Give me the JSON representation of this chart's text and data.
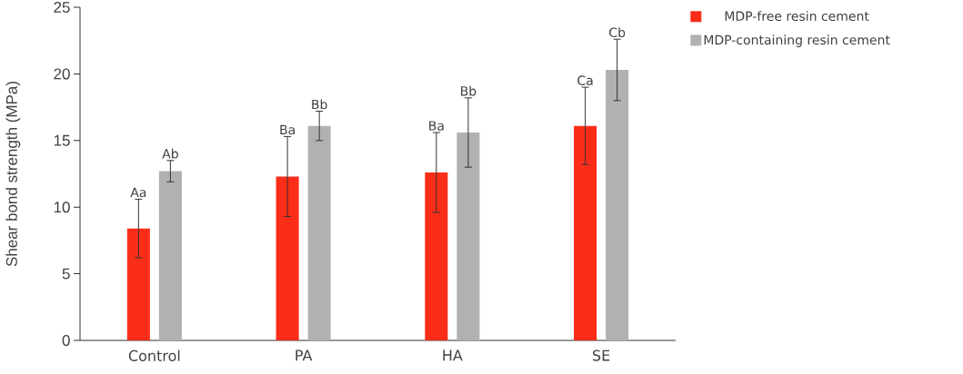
{
  "chart_data": {
    "type": "bar",
    "ylabel": "Shear bond strength (MPa)",
    "categories": [
      "Control",
      "PA",
      "HA",
      "SE"
    ],
    "series": [
      {
        "name": "MDP-free resin cement",
        "color": "#fa2d19",
        "values": [
          8.4,
          12.3,
          12.6,
          16.1
        ],
        "errors": [
          2.2,
          3.0,
          3.0,
          2.9
        ]
      },
      {
        "name": "MDP-containing resin cement",
        "color": "#b0b1b3",
        "values": [
          12.7,
          16.1,
          15.6,
          20.3
        ],
        "errors": [
          0.8,
          1.1,
          2.6,
          2.3
        ]
      }
    ],
    "ylim": [
      0,
      25
    ],
    "yticks": [
      0,
      5,
      10,
      15,
      20,
      25
    ],
    "legend": "top right",
    "grid": false,
    "annotations": [
      "Aa",
      "Ab",
      "Ba",
      "Bb",
      "Ba",
      "Bb",
      "Ca",
      "Cb"
    ]
  }
}
